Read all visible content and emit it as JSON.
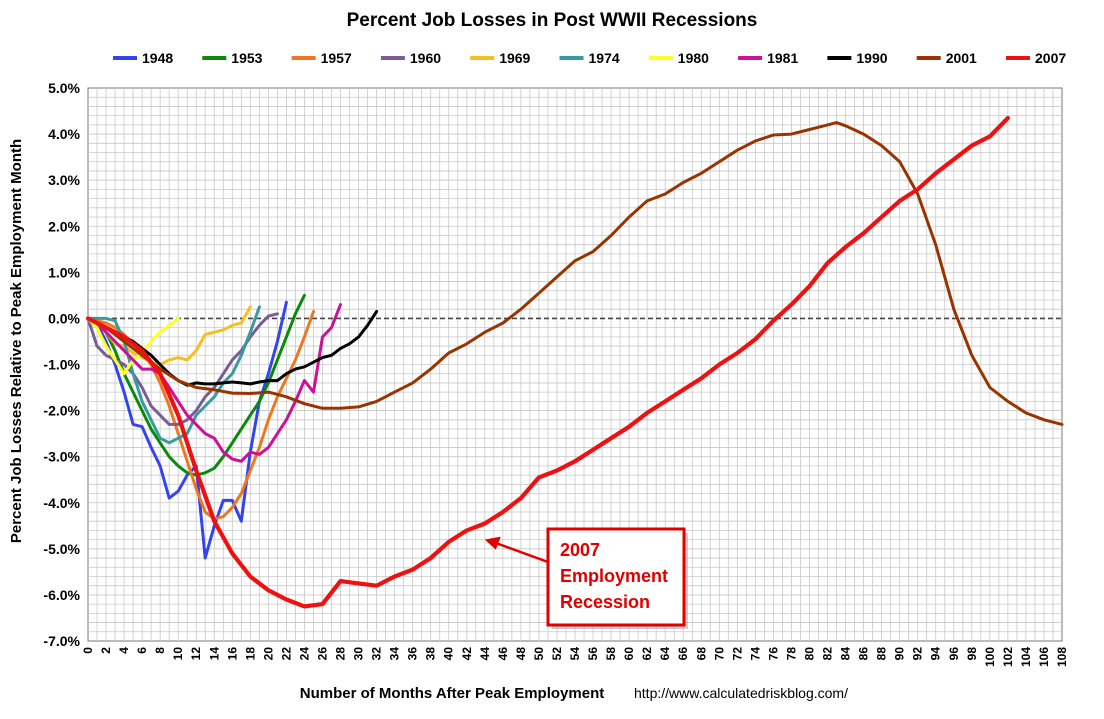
{
  "colors": {
    "1948": "#3344ee",
    "1953": "#0a8a0a",
    "1957": "#ee7722",
    "1960": "#7a5c99",
    "1969": "#f4c020",
    "1974": "#3a9aa0",
    "1980": "#ffff22",
    "1981": "#cc1199",
    "1990": "#000000",
    "2001": "#993300",
    "2007": "#ee1111",
    "zero_line": "#444444",
    "plot_bg": "#ffffff",
    "grid": "#c8c8c8",
    "annotation": "#e00000"
  },
  "chart_data": {
    "type": "line",
    "title": "Percent Job Losses in Post WWII Recessions",
    "xlabel": "Number of Months After Peak Employment",
    "ylabel": "Percent Job Losses Relative to Peak Employment Month",
    "source": "http://www.calculatedriskblog.com/",
    "xlim": [
      0,
      108
    ],
    "ylim": [
      -7.0,
      5.0
    ],
    "grid": true,
    "legend_position": "top",
    "yticks": [
      "5.0%",
      "4.0%",
      "3.0%",
      "2.0%",
      "1.0%",
      "0.0%",
      "-1.0%",
      "-2.0%",
      "-3.0%",
      "-4.0%",
      "-5.0%",
      "-6.0%",
      "-7.0%"
    ],
    "xticks": [
      "0",
      "2",
      "4",
      "6",
      "8",
      "10",
      "12",
      "14",
      "16",
      "18",
      "20",
      "22",
      "24",
      "26",
      "28",
      "30",
      "32",
      "34",
      "36",
      "38",
      "40",
      "42",
      "44",
      "46",
      "48",
      "50",
      "52",
      "54",
      "56",
      "58",
      "60",
      "62",
      "64",
      "66",
      "68",
      "70",
      "72",
      "74",
      "76",
      "78",
      "80",
      "82",
      "84",
      "86",
      "88",
      "90",
      "92",
      "94",
      "96",
      "98",
      "100",
      "102",
      "104",
      "106",
      "108"
    ],
    "annotation": {
      "lines": [
        "2007",
        "Employment",
        "Recession"
      ],
      "points_to": [
        44,
        -4.8
      ]
    },
    "series": [
      {
        "name": "1948",
        "x": [
          0,
          1,
          2,
          3,
          4,
          5,
          6,
          7,
          8,
          9,
          10,
          11,
          12,
          13,
          14,
          15,
          16,
          17,
          18,
          19,
          20,
          21,
          22
        ],
        "y": [
          0,
          -0.1,
          -0.5,
          -1.0,
          -1.6,
          -2.3,
          -2.35,
          -2.8,
          -3.2,
          -3.9,
          -3.75,
          -3.4,
          -3.2,
          -5.2,
          -4.5,
          -3.95,
          -3.95,
          -4.4,
          -2.9,
          -1.8,
          -1.2,
          -0.5,
          0.35
        ]
      },
      {
        "name": "1953",
        "x": [
          0,
          1,
          2,
          3,
          4,
          5,
          6,
          7,
          8,
          9,
          10,
          11,
          12,
          13,
          14,
          15,
          16,
          17,
          18,
          19,
          20,
          21,
          22,
          23,
          24
        ],
        "y": [
          0,
          -0.1,
          -0.3,
          -0.7,
          -1.2,
          -1.6,
          -2.0,
          -2.4,
          -2.7,
          -3.0,
          -3.2,
          -3.35,
          -3.4,
          -3.35,
          -3.25,
          -3.0,
          -2.7,
          -2.4,
          -2.1,
          -1.8,
          -1.4,
          -0.9,
          -0.4,
          0.1,
          0.5
        ]
      },
      {
        "name": "1957",
        "x": [
          0,
          1,
          2,
          3,
          4,
          5,
          6,
          7,
          8,
          9,
          10,
          11,
          12,
          13,
          14,
          15,
          16,
          17,
          18,
          19,
          20,
          21,
          22,
          23,
          24,
          25
        ],
        "y": [
          0,
          -0.05,
          -0.1,
          -0.2,
          -0.35,
          -0.55,
          -0.75,
          -1.0,
          -1.4,
          -1.9,
          -2.5,
          -3.1,
          -3.7,
          -4.2,
          -4.35,
          -4.3,
          -4.1,
          -3.8,
          -3.3,
          -2.8,
          -2.2,
          -1.7,
          -1.3,
          -0.9,
          -0.4,
          0.15
        ]
      },
      {
        "name": "1960",
        "x": [
          0,
          1,
          2,
          3,
          4,
          5,
          6,
          7,
          8,
          9,
          10,
          11,
          12,
          13,
          14,
          15,
          16,
          17,
          18,
          19,
          20,
          21
        ],
        "y": [
          0,
          -0.6,
          -0.8,
          -0.9,
          -1.0,
          -1.2,
          -1.5,
          -1.9,
          -2.1,
          -2.3,
          -2.3,
          -2.2,
          -2.0,
          -1.7,
          -1.5,
          -1.2,
          -0.9,
          -0.7,
          -0.4,
          -0.15,
          0.05,
          0.1
        ]
      },
      {
        "name": "1969",
        "x": [
          0,
          1,
          2,
          3,
          4,
          5,
          6,
          7,
          8,
          9,
          10,
          11,
          12,
          13,
          14,
          15,
          16,
          17,
          18
        ],
        "y": [
          0,
          -0.1,
          -0.3,
          -0.55,
          -0.6,
          -0.75,
          -0.85,
          -0.95,
          -1.0,
          -0.9,
          -0.85,
          -0.9,
          -0.7,
          -0.35,
          -0.3,
          -0.25,
          -0.15,
          -0.1,
          0.25
        ]
      },
      {
        "name": "1974",
        "x": [
          0,
          1,
          2,
          3,
          4,
          5,
          6,
          7,
          8,
          9,
          10,
          11,
          12,
          13,
          14,
          15,
          16,
          17,
          18,
          19
        ],
        "y": [
          0,
          0,
          0,
          -0.05,
          -0.5,
          -1.2,
          -1.8,
          -2.2,
          -2.6,
          -2.7,
          -2.6,
          -2.5,
          -2.1,
          -1.9,
          -1.7,
          -1.4,
          -1.2,
          -0.8,
          -0.3,
          0.25
        ]
      },
      {
        "name": "1980",
        "x": [
          0,
          1,
          2,
          3,
          4,
          5,
          6,
          7,
          8,
          9,
          10
        ],
        "y": [
          0,
          -0.2,
          -0.6,
          -0.9,
          -1.2,
          -0.9,
          -0.75,
          -0.5,
          -0.3,
          -0.15,
          0.0
        ]
      },
      {
        "name": "1981",
        "x": [
          0,
          1,
          2,
          3,
          4,
          5,
          6,
          7,
          8,
          9,
          10,
          11,
          12,
          13,
          14,
          15,
          16,
          17,
          18,
          19,
          20,
          21,
          22,
          23,
          24,
          25,
          26,
          27,
          28
        ],
        "y": [
          0,
          -0.1,
          -0.3,
          -0.5,
          -0.7,
          -0.9,
          -1.1,
          -1.1,
          -1.2,
          -1.5,
          -1.8,
          -2.1,
          -2.3,
          -2.5,
          -2.6,
          -2.9,
          -3.05,
          -3.1,
          -2.9,
          -2.95,
          -2.8,
          -2.5,
          -2.2,
          -1.8,
          -1.35,
          -1.6,
          -0.4,
          -0.2,
          0.3
        ]
      },
      {
        "name": "1990",
        "x": [
          0,
          1,
          2,
          3,
          4,
          5,
          6,
          7,
          8,
          9,
          10,
          11,
          12,
          13,
          14,
          15,
          16,
          17,
          18,
          19,
          20,
          21,
          22,
          23,
          24,
          25,
          26,
          27,
          28,
          29,
          30,
          31,
          32
        ],
        "y": [
          0,
          -0.1,
          -0.2,
          -0.3,
          -0.4,
          -0.5,
          -0.65,
          -0.8,
          -1.0,
          -1.2,
          -1.35,
          -1.45,
          -1.4,
          -1.42,
          -1.42,
          -1.4,
          -1.38,
          -1.4,
          -1.42,
          -1.38,
          -1.35,
          -1.35,
          -1.2,
          -1.1,
          -1.05,
          -0.95,
          -0.85,
          -0.8,
          -0.65,
          -0.55,
          -0.4,
          -0.15,
          0.15
        ]
      },
      {
        "name": "2001",
        "x": [
          0,
          2,
          4,
          6,
          8,
          10,
          12,
          14,
          16,
          18,
          20,
          22,
          24,
          26,
          28,
          30,
          32,
          34,
          36,
          38,
          40,
          42,
          44,
          46,
          48,
          50,
          52,
          54,
          56,
          58,
          60,
          62,
          64,
          66,
          68,
          70,
          72,
          74,
          76,
          78,
          80,
          82,
          83,
          84,
          86,
          88,
          90,
          92,
          94,
          96,
          98,
          100,
          102,
          104,
          106,
          108
        ],
        "y": [
          0,
          -0.2,
          -0.5,
          -0.8,
          -1.1,
          -1.35,
          -1.5,
          -1.55,
          -1.62,
          -1.63,
          -1.6,
          -1.7,
          -1.85,
          -1.95,
          -1.95,
          -1.92,
          -1.8,
          -1.6,
          -1.4,
          -1.1,
          -0.75,
          -0.55,
          -0.3,
          -0.1,
          0.2,
          0.55,
          0.9,
          1.25,
          1.45,
          1.8,
          2.2,
          2.55,
          2.7,
          2.95,
          3.15,
          3.4,
          3.65,
          3.85,
          3.98,
          4.0,
          4.1,
          4.2,
          4.25,
          4.18,
          4.0,
          3.75,
          3.4,
          2.7,
          1.6,
          0.2,
          -0.8,
          -1.5,
          -1.8,
          -2.05,
          -2.2,
          -2.3
        ]
      },
      {
        "name": "2007",
        "x": [
          0,
          2,
          4,
          6,
          8,
          10,
          12,
          14,
          16,
          18,
          20,
          22,
          24,
          26,
          28,
          30,
          32,
          34,
          36,
          38,
          40,
          42,
          44,
          46,
          48,
          50,
          52,
          54,
          56,
          58,
          60,
          62,
          64,
          66,
          68,
          70,
          72,
          74,
          76,
          78,
          80,
          82,
          84,
          86,
          88,
          90,
          92,
          94,
          96,
          98,
          100,
          102
        ],
        "y": [
          0,
          -0.2,
          -0.4,
          -0.7,
          -1.2,
          -2.1,
          -3.3,
          -4.4,
          -5.1,
          -5.6,
          -5.9,
          -6.1,
          -6.25,
          -6.2,
          -5.7,
          -5.75,
          -5.8,
          -5.6,
          -5.45,
          -5.2,
          -4.85,
          -4.6,
          -4.45,
          -4.2,
          -3.9,
          -3.45,
          -3.3,
          -3.1,
          -2.85,
          -2.6,
          -2.35,
          -2.05,
          -1.8,
          -1.55,
          -1.3,
          -1.0,
          -0.75,
          -0.45,
          -0.05,
          0.3,
          0.7,
          1.2,
          1.55,
          1.85,
          2.2,
          2.55,
          2.8,
          3.15,
          3.45,
          3.75,
          3.95,
          4.35
        ]
      }
    ]
  }
}
